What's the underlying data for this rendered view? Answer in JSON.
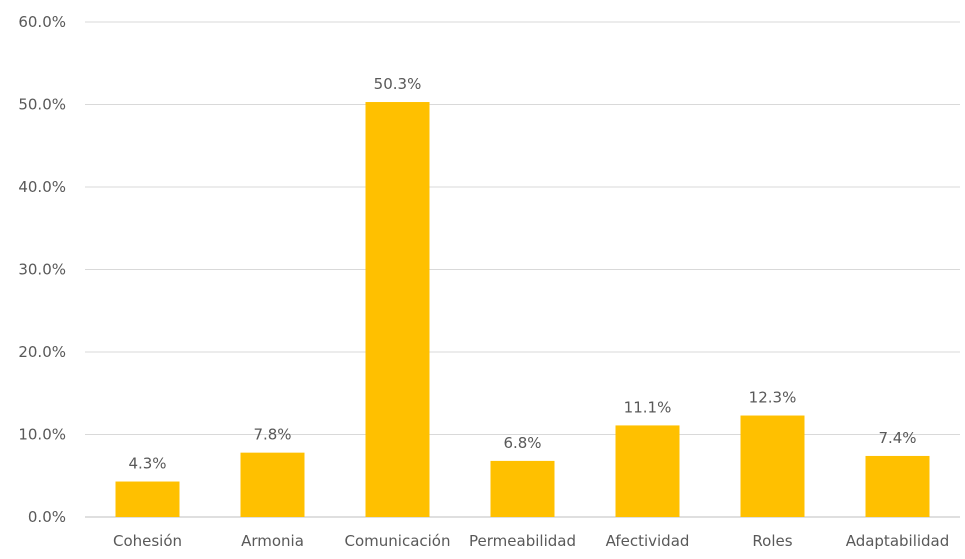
{
  "chart_data": {
    "type": "bar",
    "title": "",
    "xlabel": "",
    "ylabel": "",
    "categories": [
      "Cohesión",
      "Armonia",
      "Comunicación",
      "Permeabilidad",
      "Afectividad",
      "Roles",
      "Adaptabilidad"
    ],
    "values": [
      4.3,
      7.8,
      50.3,
      6.8,
      11.1,
      12.3,
      7.4
    ],
    "data_labels": [
      "4.3%",
      "7.8%",
      "50.3%",
      "6.8%",
      "11.1%",
      "12.3%",
      "7.4%"
    ],
    "ylim": [
      0,
      60
    ],
    "yticks": [
      0,
      10,
      20,
      30,
      40,
      50,
      60
    ],
    "ytick_labels": [
      "0.0%",
      "10.0%",
      "20.0%",
      "30.0%",
      "40.0%",
      "50.0%",
      "60.0%"
    ],
    "grid": true,
    "legend": "none",
    "colors": {
      "bar": "#FFC000",
      "grid": "#D9D9D9",
      "axis": "#BFBFBF",
      "text": "#595959"
    }
  }
}
